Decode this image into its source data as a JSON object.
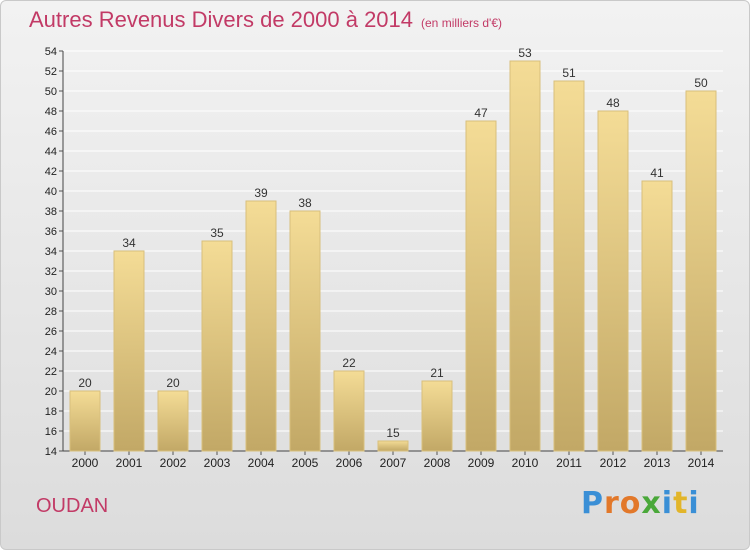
{
  "title": "Autres Revenus Divers de 2000 à 2014",
  "title_unit": "(en milliers d'€)",
  "town": "OUDAN",
  "logo": {
    "text": "Proxiti",
    "letter_colors": [
      "#3a8fd6",
      "#e2782a",
      "#e2782a",
      "#4aa83a",
      "#3a8fd6",
      "#e2b52a",
      "#3a8fd6"
    ]
  },
  "colors": {
    "bar_top": "#f4dc96",
    "bar_bottom": "#c2a866",
    "bar_edge": "#d8bf7c",
    "title": "#c23a66",
    "grid": "#ffffff"
  },
  "chart_data": {
    "type": "bar",
    "title": "Autres Revenus Divers de 2000 à 2014",
    "subtitle": "(en milliers d'€)",
    "categories": [
      "2000",
      "2001",
      "2002",
      "2003",
      "2004",
      "2005",
      "2006",
      "2007",
      "2008",
      "2009",
      "2010",
      "2011",
      "2012",
      "2013",
      "2014"
    ],
    "values": [
      20,
      34,
      20,
      35,
      39,
      38,
      22,
      15,
      21,
      47,
      53,
      51,
      48,
      41,
      50
    ],
    "ylim": [
      14,
      54
    ],
    "yticks": [
      14,
      16,
      18,
      20,
      22,
      24,
      26,
      28,
      30,
      32,
      34,
      36,
      38,
      40,
      42,
      44,
      46,
      48,
      50,
      52,
      54
    ],
    "xlabel": "",
    "ylabel": "",
    "grid": true,
    "data_labels": true
  }
}
